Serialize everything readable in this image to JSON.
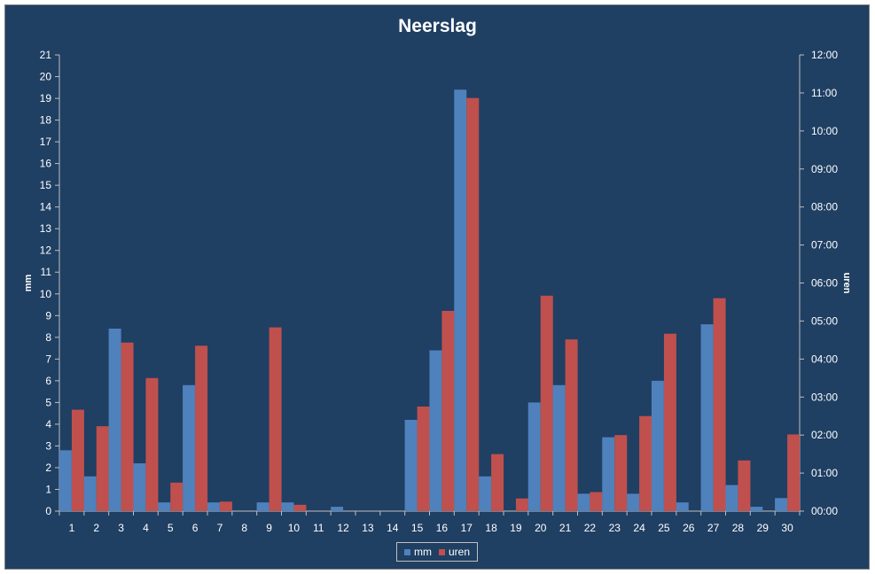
{
  "chart_data": {
    "type": "bar",
    "title": "Neerslag",
    "ylabel": "mm",
    "y2label": "uren",
    "categories": [
      "1",
      "2",
      "3",
      "4",
      "5",
      "6",
      "7",
      "8",
      "9",
      "10",
      "11",
      "12",
      "13",
      "14",
      "15",
      "16",
      "17",
      "18",
      "19",
      "20",
      "21",
      "22",
      "23",
      "24",
      "25",
      "26",
      "27",
      "28",
      "29",
      "30"
    ],
    "ylim": [
      0,
      21
    ],
    "y2lim": [
      0,
      720
    ],
    "yticks": [
      "0",
      "1",
      "2",
      "3",
      "4",
      "5",
      "6",
      "7",
      "8",
      "9",
      "10",
      "11",
      "12",
      "13",
      "14",
      "15",
      "16",
      "17",
      "18",
      "19",
      "20",
      "21"
    ],
    "y2ticks": [
      "00:00",
      "01:00",
      "02:00",
      "03:00",
      "04:00",
      "05:00",
      "06:00",
      "07:00",
      "08:00",
      "09:00",
      "10:00",
      "11:00",
      "12:00"
    ],
    "series": [
      {
        "name": "mm",
        "axis": "left",
        "color": "#4f81bd",
        "values": [
          2.8,
          1.6,
          8.4,
          2.2,
          0.4,
          5.8,
          0.4,
          0,
          0.4,
          0.4,
          0,
          0.2,
          0,
          0,
          4.2,
          7.4,
          19.4,
          1.6,
          0,
          5.0,
          5.8,
          0.8,
          3.4,
          0.8,
          6.0,
          0.4,
          8.6,
          1.2,
          0.2,
          0.6
        ]
      },
      {
        "name": "uren",
        "axis": "right",
        "color": "#c0504d",
        "values_minutes": [
          160,
          134,
          266,
          210,
          45,
          261,
          15,
          0,
          290,
          10,
          0,
          0,
          0,
          0,
          165,
          316,
          652,
          90,
          20,
          340,
          271,
          30,
          120,
          150,
          280,
          0,
          336,
          80,
          0,
          121
        ]
      }
    ],
    "legend_position": "bottom",
    "grid": false
  }
}
